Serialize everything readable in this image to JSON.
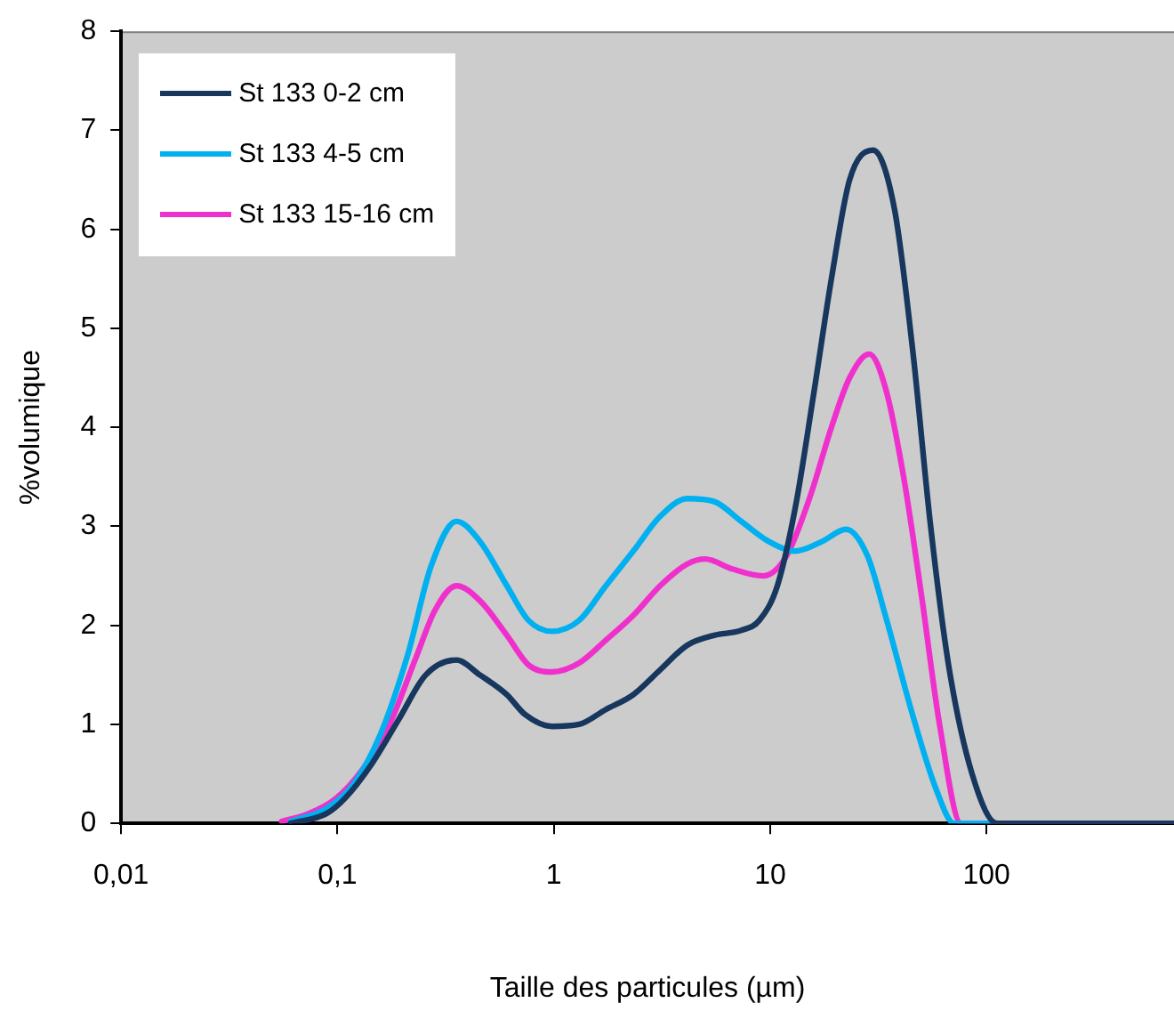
{
  "chart_data": {
    "type": "line",
    "xlabel": "Taille des particules (µm)",
    "ylabel": "%volumique",
    "log": "x",
    "grid": false,
    "legend": "top left",
    "marker": "none",
    "line_style": "solid",
    "xlim": [
      0.01,
      736
    ],
    "xticks": [
      {
        "value": 0.01,
        "label": "0,01"
      },
      {
        "value": 0.1,
        "label": "0,1"
      },
      1,
      10,
      100
    ],
    "ylim": [
      0,
      8
    ],
    "yticks": [
      0,
      1,
      2,
      3,
      4,
      5,
      6,
      7,
      8
    ],
    "series": [
      {
        "name": "St 133 0-2 cm",
        "color": "#17375e",
        "x": [
          0.0607,
          0.0891,
          0.108,
          0.144,
          0.192,
          0.256,
          0.355,
          0.455,
          0.607,
          0.736,
          0.981,
          1.31,
          1.74,
          2.33,
          3.1,
          4.14,
          5.52,
          7.36,
          8.91,
          10.8,
          13.1,
          15.8,
          19.2,
          23.3,
          29.9,
          37.6,
          45.5,
          55.2,
          66.8,
          85.8,
          112,
          736
        ],
        "values": [
          0,
          0.1,
          0.25,
          0.6,
          1.05,
          1.5,
          1.65,
          1.5,
          1.3,
          1.1,
          0.98,
          1,
          1.15,
          1.3,
          1.55,
          1.8,
          1.9,
          1.95,
          2.05,
          2.4,
          3.2,
          4.3,
          5.5,
          6.5,
          6.8,
          6.2,
          4.8,
          3,
          1.6,
          0.5,
          0,
          0
        ]
      },
      {
        "name": "St 133 4-5 cm",
        "color": "#00b0f0",
        "x": [
          0.0607,
          0.0891,
          0.119,
          0.158,
          0.211,
          0.271,
          0.355,
          0.455,
          0.607,
          0.764,
          0.981,
          1.31,
          1.74,
          2.33,
          3.1,
          4.14,
          5.52,
          7.36,
          9.81,
          13.1,
          17.5,
          22.4,
          28.2,
          34.1,
          45.5,
          58.4,
          70.8,
          736
        ],
        "values": [
          0.02,
          0.15,
          0.4,
          0.9,
          1.7,
          2.6,
          3.05,
          2.85,
          2.4,
          2.05,
          1.94,
          2.05,
          2.4,
          2.75,
          3.1,
          3.28,
          3.25,
          3.05,
          2.85,
          2.75,
          2.85,
          2.97,
          2.7,
          2.1,
          1.1,
          0.35,
          0,
          0
        ]
      },
      {
        "name": "St 133 15-16 cm",
        "color": "#f030cc",
        "x": [
          0.0552,
          0.0736,
          0.0981,
          0.131,
          0.174,
          0.233,
          0.282,
          0.355,
          0.455,
          0.607,
          0.764,
          0.981,
          1.31,
          1.74,
          2.33,
          3.1,
          4.14,
          5.01,
          6.68,
          9.26,
          11.9,
          15.3,
          19.2,
          23.3,
          28.7,
          34.1,
          41.4,
          50.1,
          60.7,
          76.4,
          736
        ],
        "values": [
          0.02,
          0.1,
          0.25,
          0.55,
          1,
          1.7,
          2.15,
          2.4,
          2.25,
          1.9,
          1.6,
          1.53,
          1.62,
          1.85,
          2.1,
          2.4,
          2.62,
          2.67,
          2.57,
          2.5,
          2.7,
          3.3,
          4,
          4.5,
          4.74,
          4.4,
          3.5,
          2.3,
          1,
          0,
          0
        ]
      }
    ]
  }
}
